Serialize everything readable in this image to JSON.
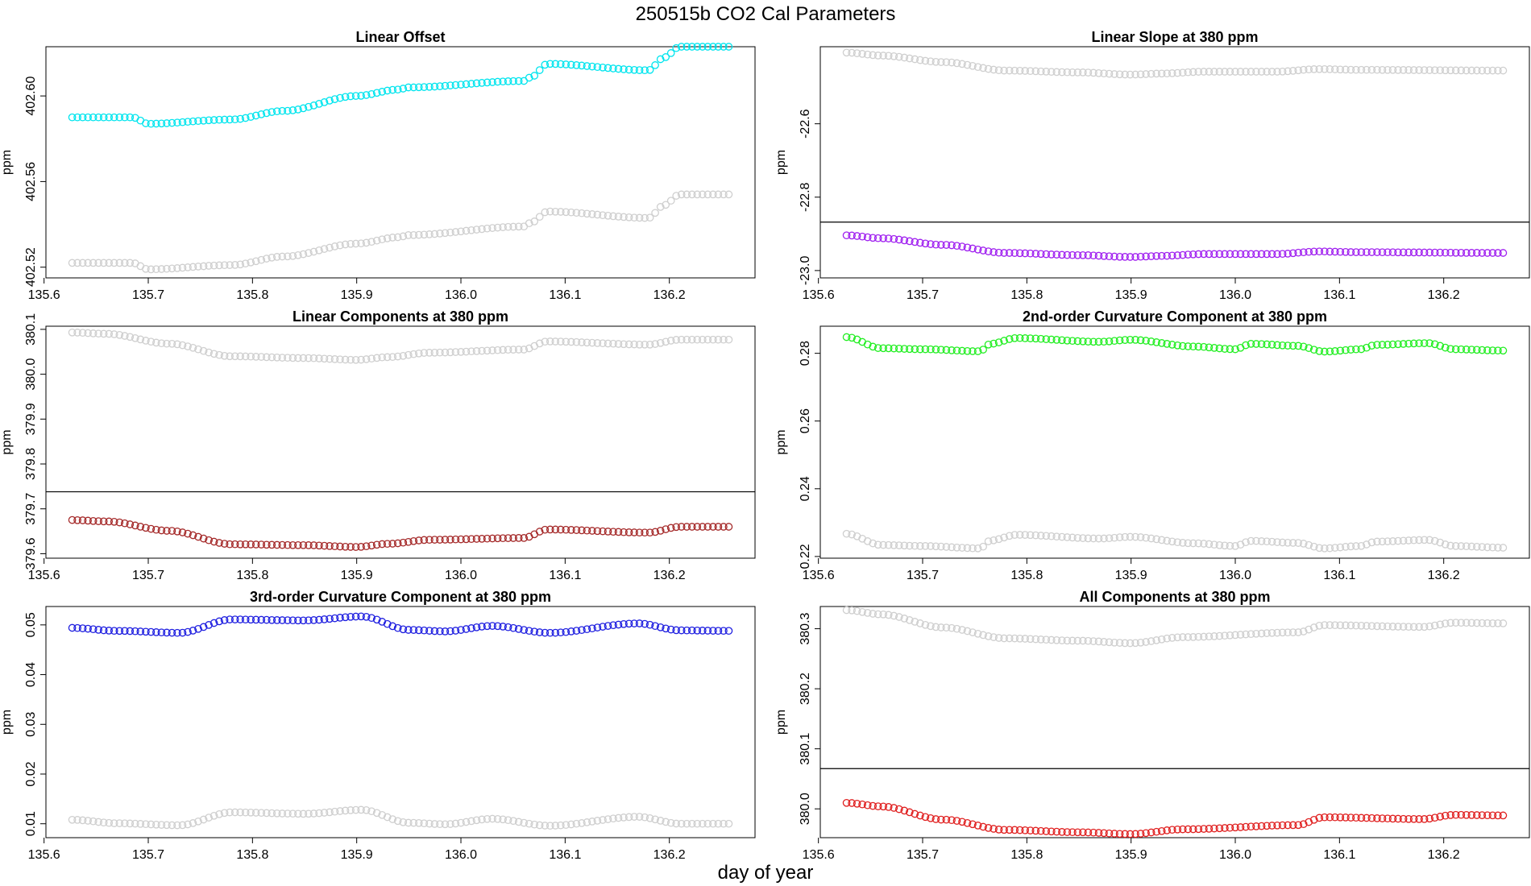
{
  "title": "250515b    CO2 Cal Parameters",
  "xlabel": "day of year",
  "colors": {
    "cyan": "#00e5ee",
    "grey": "#cfcfcf",
    "purple": "#a020f0",
    "darkred": "#a52a2a",
    "green": "#22ee22",
    "blue": "#2020e0",
    "red": "#e02020",
    "refline": "#000000"
  },
  "x_range": [
    135.627,
    136.257
  ],
  "x_ticks": [
    "135.6",
    "135.7",
    "135.8",
    "135.9",
    "136.0",
    "136.1",
    "136.2"
  ],
  "chart_data": [
    {
      "type": "scatter",
      "title": "Linear Offset",
      "ylabel": "ppm",
      "ylim": [
        402.515,
        402.623
      ],
      "yticks": [
        "402.52",
        "402.56",
        "402.60"
      ],
      "hline": null,
      "series": [
        {
          "name": "primary",
          "color": "cyan",
          "keypoints": [
            [
              135.627,
              402.59
            ],
            [
              135.685,
              402.59
            ],
            [
              135.7,
              402.587
            ],
            [
              135.78,
              402.589
            ],
            [
              135.83,
              402.593
            ],
            [
              135.9,
              402.6
            ],
            [
              135.94,
              402.603
            ],
            [
              135.95,
              402.604
            ],
            [
              136.06,
              402.607
            ],
            [
              136.068,
              402.609
            ],
            [
              136.083,
              402.615
            ],
            [
              136.18,
              402.612
            ],
            [
              136.195,
              402.618
            ],
            [
              136.21,
              402.623
            ],
            [
              136.257,
              402.623
            ]
          ]
        },
        {
          "name": "shadow",
          "color": "grey",
          "keypoints": [
            [
              135.627,
              402.522
            ],
            [
              135.685,
              402.522
            ],
            [
              135.7,
              402.519
            ],
            [
              135.78,
              402.521
            ],
            [
              135.83,
              402.525
            ],
            [
              135.9,
              402.531
            ],
            [
              135.94,
              402.534
            ],
            [
              135.95,
              402.535
            ],
            [
              136.06,
              402.539
            ],
            [
              136.068,
              402.541
            ],
            [
              136.083,
              402.546
            ],
            [
              136.18,
              402.543
            ],
            [
              136.195,
              402.549
            ],
            [
              136.21,
              402.554
            ],
            [
              136.257,
              402.554
            ]
          ]
        }
      ]
    },
    {
      "type": "scatter",
      "title": "Linear Slope at 380 ppm",
      "ylabel": "ppm",
      "ylim": [
        -23.02,
        -22.39
      ],
      "yticks": [
        "-23.0",
        "-22.8",
        "-22.6"
      ],
      "hline": -22.868,
      "series": [
        {
          "name": "primary",
          "color": "purple",
          "keypoints": [
            [
              135.627,
              -22.904
            ],
            [
              135.66,
              -22.912
            ],
            [
              135.72,
              -22.93
            ],
            [
              135.78,
              -22.952
            ],
            [
              135.85,
              -22.958
            ],
            [
              135.9,
              -22.963
            ],
            [
              135.93,
              -22.96
            ],
            [
              135.97,
              -22.955
            ],
            [
              136.04,
              -22.955
            ],
            [
              136.08,
              -22.948
            ],
            [
              136.12,
              -22.95
            ],
            [
              136.257,
              -22.952
            ]
          ]
        },
        {
          "name": "shadow",
          "color": "grey",
          "keypoints": [
            [
              135.627,
              -22.406
            ],
            [
              135.66,
              -22.414
            ],
            [
              135.72,
              -22.432
            ],
            [
              135.78,
              -22.455
            ],
            [
              135.85,
              -22.46
            ],
            [
              135.9,
              -22.466
            ],
            [
              135.93,
              -22.463
            ],
            [
              135.97,
              -22.458
            ],
            [
              136.04,
              -22.458
            ],
            [
              136.08,
              -22.451
            ],
            [
              136.12,
              -22.453
            ],
            [
              136.257,
              -22.455
            ]
          ]
        }
      ]
    },
    {
      "type": "scatter",
      "title": "Linear Components at 380 ppm",
      "ylabel": "ppm",
      "ylim": [
        379.59,
        380.107
      ],
      "yticks": [
        "379.6",
        "379.7",
        "379.8",
        "379.9",
        "380.0",
        "380.1"
      ],
      "hline": 379.738,
      "series": [
        {
          "name": "primary",
          "color": "darkred",
          "keypoints": [
            [
              135.627,
              379.675
            ],
            [
              135.66,
              379.672
            ],
            [
              135.72,
              379.651
            ],
            [
              135.78,
              379.621
            ],
            [
              135.85,
              379.619
            ],
            [
              135.9,
              379.615
            ],
            [
              135.93,
              379.622
            ],
            [
              135.97,
              379.631
            ],
            [
              136.06,
              379.635
            ],
            [
              136.083,
              379.654
            ],
            [
              136.18,
              379.647
            ],
            [
              136.21,
              379.66
            ],
            [
              136.257,
              379.66
            ]
          ]
        },
        {
          "name": "shadow",
          "color": "grey",
          "keypoints": [
            [
              135.627,
              380.093
            ],
            [
              135.66,
              380.09
            ],
            [
              135.72,
              380.068
            ],
            [
              135.78,
              380.04
            ],
            [
              135.85,
              380.036
            ],
            [
              135.9,
              380.032
            ],
            [
              135.93,
              380.038
            ],
            [
              135.97,
              380.048
            ],
            [
              136.06,
              380.055
            ],
            [
              136.083,
              380.073
            ],
            [
              136.18,
              380.066
            ],
            [
              136.21,
              380.077
            ],
            [
              136.257,
              380.077
            ]
          ]
        }
      ]
    },
    {
      "type": "scatter",
      "title": "2nd-order Curvature Component at 380 ppm",
      "ylabel": "ppm",
      "ylim": [
        0.2195,
        0.288
      ],
      "yticks": [
        "0.22",
        "0.24",
        "0.26",
        "0.28"
      ],
      "hline": null,
      "series": [
        {
          "name": "primary",
          "color": "green",
          "keypoints": [
            [
              135.627,
              0.2848
            ],
            [
              135.66,
              0.2815
            ],
            [
              135.7,
              0.2812
            ],
            [
              135.755,
              0.2806
            ],
            [
              135.765,
              0.2828
            ],
            [
              135.79,
              0.2845
            ],
            [
              135.87,
              0.2834
            ],
            [
              135.9,
              0.284
            ],
            [
              135.96,
              0.282
            ],
            [
              136.0,
              0.2812
            ],
            [
              136.015,
              0.2828
            ],
            [
              136.06,
              0.2822
            ],
            [
              136.085,
              0.2805
            ],
            [
              136.12,
              0.2812
            ],
            [
              136.135,
              0.2825
            ],
            [
              136.185,
              0.283
            ],
            [
              136.21,
              0.2812
            ],
            [
              136.257,
              0.2808
            ]
          ]
        },
        {
          "name": "shadow",
          "color": "grey",
          "keypoints": [
            [
              135.627,
              0.2267
            ],
            [
              135.66,
              0.2234
            ],
            [
              135.7,
              0.2231
            ],
            [
              135.755,
              0.2224
            ],
            [
              135.765,
              0.2247
            ],
            [
              135.79,
              0.2264
            ],
            [
              135.87,
              0.2253
            ],
            [
              135.9,
              0.2258
            ],
            [
              135.96,
              0.2239
            ],
            [
              136.0,
              0.2231
            ],
            [
              136.015,
              0.2246
            ],
            [
              136.06,
              0.224
            ],
            [
              136.085,
              0.2224
            ],
            [
              136.12,
              0.2231
            ],
            [
              136.135,
              0.2244
            ],
            [
              136.185,
              0.2249
            ],
            [
              136.21,
              0.2231
            ],
            [
              136.257,
              0.2226
            ]
          ]
        }
      ]
    },
    {
      "type": "scatter",
      "title": "3rd-order Curvature Component at 380 ppm",
      "ylabel": "ppm",
      "ylim": [
        0.0072,
        0.0537
      ],
      "yticks": [
        "0.01",
        "0.02",
        "0.03",
        "0.04",
        "0.05"
      ],
      "hline": null,
      "series": [
        {
          "name": "primary",
          "color": "blue",
          "keypoints": [
            [
              135.627,
              0.0494
            ],
            [
              135.67,
              0.0488
            ],
            [
              135.73,
              0.0484
            ],
            [
              135.78,
              0.0511
            ],
            [
              135.85,
              0.0509
            ],
            [
              135.905,
              0.0517
            ],
            [
              135.95,
              0.049
            ],
            [
              135.985,
              0.0487
            ],
            [
              136.03,
              0.0498
            ],
            [
              136.085,
              0.0484
            ],
            [
              136.17,
              0.0503
            ],
            [
              136.21,
              0.0489
            ],
            [
              136.257,
              0.0488
            ]
          ]
        },
        {
          "name": "shadow",
          "color": "grey",
          "keypoints": [
            [
              135.627,
              0.0108
            ],
            [
              135.67,
              0.0101
            ],
            [
              135.73,
              0.0097
            ],
            [
              135.78,
              0.0123
            ],
            [
              135.85,
              0.012
            ],
            [
              135.905,
              0.0128
            ],
            [
              135.95,
              0.0102
            ],
            [
              135.985,
              0.0099
            ],
            [
              136.03,
              0.011
            ],
            [
              136.085,
              0.0096
            ],
            [
              136.17,
              0.0114
            ],
            [
              136.21,
              0.01
            ],
            [
              136.257,
              0.01
            ]
          ]
        }
      ]
    },
    {
      "type": "scatter",
      "title": "All Components at 380 ppm",
      "ylabel": "ppm",
      "ylim": [
        379.952,
        380.337
      ],
      "yticks": [
        "380.0",
        "380.1",
        "380.2",
        "380.3"
      ],
      "hline": 380.067,
      "series": [
        {
          "name": "primary",
          "color": "red",
          "keypoints": [
            [
              135.627,
              380.01
            ],
            [
              135.66,
              380.004
            ],
            [
              135.72,
              379.982
            ],
            [
              135.78,
              379.965
            ],
            [
              135.85,
              379.961
            ],
            [
              135.9,
              379.958
            ],
            [
              135.95,
              379.966
            ],
            [
              136.06,
              379.973
            ],
            [
              136.085,
              379.986
            ],
            [
              136.18,
              379.983
            ],
            [
              136.21,
              379.99
            ],
            [
              136.257,
              379.989
            ]
          ]
        },
        {
          "name": "shadow",
          "color": "grey",
          "keypoints": [
            [
              135.627,
              380.331
            ],
            [
              135.66,
              380.324
            ],
            [
              135.72,
              380.302
            ],
            [
              135.78,
              380.284
            ],
            [
              135.85,
              380.28
            ],
            [
              135.9,
              380.276
            ],
            [
              135.95,
              380.286
            ],
            [
              136.06,
              380.294
            ],
            [
              136.085,
              380.306
            ],
            [
              136.18,
              380.303
            ],
            [
              136.21,
              380.31
            ],
            [
              136.257,
              380.309
            ]
          ]
        }
      ]
    }
  ]
}
